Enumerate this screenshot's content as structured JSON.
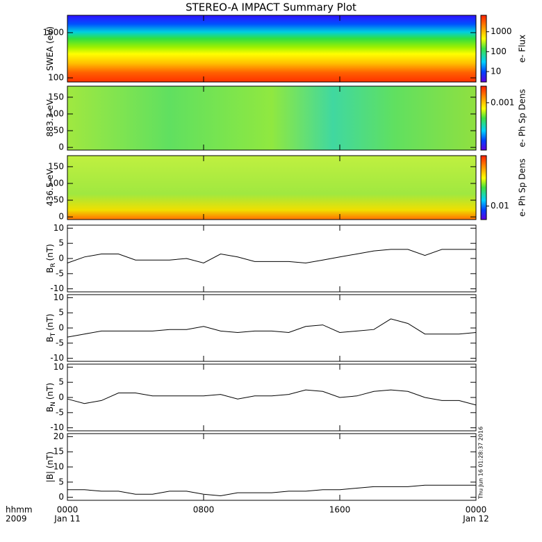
{
  "title": "STEREO-A IMPACT Summary Plot",
  "timestamp": "Thu Jun 16 01:28:37 2016",
  "xaxis": {
    "corner_labels": [
      "hhmm",
      "2009"
    ],
    "xlim": [
      0,
      24
    ],
    "xticks": [
      {
        "value": 0,
        "label": "0000",
        "date": "Jan 11"
      },
      {
        "value": 8,
        "label": "0800"
      },
      {
        "value": 16,
        "label": "1600"
      },
      {
        "value": 24,
        "label": "0000",
        "date": "Jan 12"
      }
    ]
  },
  "chart_data": [
    {
      "type": "heatmap",
      "ylabel": "SWEA (eV)",
      "log": true,
      "ylim": [
        81,
        2420
      ],
      "yticks": [
        100,
        1000
      ],
      "colorbar": {
        "label": "e- Flux",
        "log": true,
        "lim": [
          3,
          6700
        ],
        "ticks": [
          10,
          100,
          1000
        ]
      }
    },
    {
      "type": "heatmap",
      "ylabel": "883.3 eV",
      "ylim": [
        -8,
        183
      ],
      "yticks": [
        0,
        50,
        100,
        150
      ],
      "colorbar": {
        "label": "e- Ph Sp Dens",
        "log": true,
        "lim": [
          4e-06,
          0.0069
        ],
        "ticks": [
          0.001
        ]
      }
    },
    {
      "type": "heatmap",
      "ylabel": "436.5 eV",
      "ylim": [
        -8,
        183
      ],
      "yticks": [
        0,
        50,
        100,
        150
      ],
      "colorbar": {
        "label": "e- Ph Sp Dens",
        "log": true,
        "lim": [
          0.002,
          3.97
        ],
        "ticks": [
          0.01
        ]
      }
    },
    {
      "type": "line",
      "ylabel": "B",
      "ylabel_sub": "R",
      "ylabel_unit": "(nT)",
      "ylim": [
        -11,
        11
      ],
      "yticks": [
        -10,
        -5,
        0,
        5,
        10
      ],
      "color": "#000000",
      "x": [
        0,
        1,
        2,
        3,
        4,
        5,
        6,
        7,
        8,
        9,
        10,
        11,
        12,
        13,
        14,
        15,
        16,
        17,
        18,
        19,
        20,
        21,
        22,
        23,
        24
      ],
      "values": [
        -1.5,
        0.5,
        1.5,
        1.5,
        -0.5,
        -0.5,
        -0.5,
        0,
        -1.5,
        1.5,
        0.5,
        -1,
        -1,
        -1,
        -1.5,
        -0.5,
        0.5,
        1.5,
        2.5,
        3,
        3,
        1,
        3,
        3,
        3
      ]
    },
    {
      "type": "line",
      "ylabel": "B",
      "ylabel_sub": "T",
      "ylabel_unit": "(nT)",
      "ylim": [
        -11,
        11
      ],
      "yticks": [
        -10,
        -5,
        0,
        5,
        10
      ],
      "color": "#000000",
      "x": [
        0,
        1,
        2,
        3,
        4,
        5,
        6,
        7,
        8,
        9,
        10,
        11,
        12,
        13,
        14,
        15,
        16,
        17,
        18,
        19,
        20,
        21,
        22,
        23,
        24
      ],
      "values": [
        -3,
        -2,
        -1,
        -1,
        -1,
        -1,
        -0.5,
        -0.5,
        0.5,
        -1,
        -1.5,
        -1,
        -1,
        -1.5,
        0.5,
        1,
        -1.5,
        -1,
        -0.5,
        3,
        1.5,
        -2,
        -2,
        -2,
        -1.5
      ]
    },
    {
      "type": "line",
      "ylabel": "B",
      "ylabel_sub": "N",
      "ylabel_unit": "(nT)",
      "ylim": [
        -11,
        11
      ],
      "yticks": [
        -10,
        -5,
        0,
        5,
        10
      ],
      "color": "#000000",
      "x": [
        0,
        1,
        2,
        3,
        4,
        5,
        6,
        7,
        8,
        9,
        10,
        11,
        12,
        13,
        14,
        15,
        16,
        17,
        18,
        19,
        20,
        21,
        22,
        23,
        24
      ],
      "values": [
        -0.5,
        -2,
        -1,
        1.5,
        1.5,
        0.5,
        0.5,
        0.5,
        0.5,
        1,
        -0.5,
        0.5,
        0.5,
        1,
        2.5,
        2,
        0,
        0.5,
        2,
        2.5,
        2,
        0,
        -1,
        -1,
        -2.5
      ]
    },
    {
      "type": "line",
      "ylabel": "|B| (nT)",
      "ylim": [
        -1,
        21
      ],
      "yticks": [
        0,
        5,
        10,
        15,
        20
      ],
      "color": "#000000",
      "x": [
        0,
        1,
        2,
        3,
        4,
        5,
        6,
        7,
        8,
        9,
        10,
        11,
        12,
        13,
        14,
        15,
        16,
        17,
        18,
        19,
        20,
        21,
        22,
        23,
        24
      ],
      "values": [
        2.5,
        2.5,
        2,
        2,
        1,
        1,
        2,
        2,
        1,
        0.5,
        1.5,
        1.5,
        1.5,
        2,
        2,
        2.5,
        2.5,
        3,
        3.5,
        3.5,
        3.5,
        4,
        4,
        4,
        4
      ]
    }
  ]
}
